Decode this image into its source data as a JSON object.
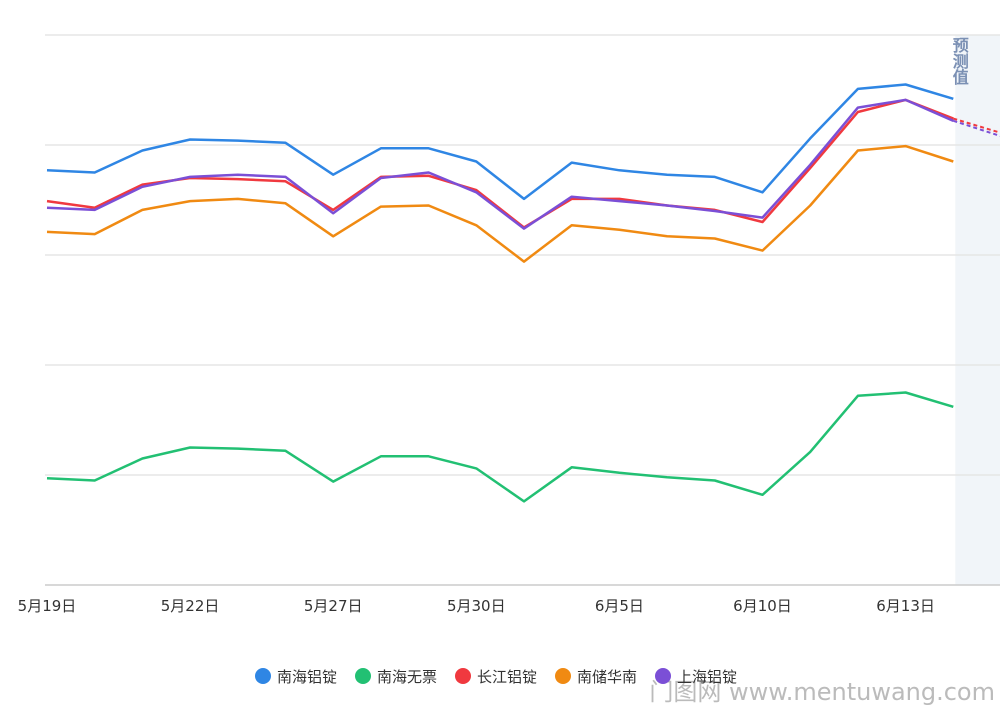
{
  "chart_data": {
    "type": "line",
    "categories": [
      "5月19日",
      null,
      null,
      "5月22日",
      null,
      null,
      "5月27日",
      null,
      null,
      "5月30日",
      null,
      null,
      "6月5日",
      null,
      null,
      "6月10日",
      null,
      null,
      "6月13日",
      null,
      null
    ],
    "forecast_start_index": 19,
    "forecast_label": "预测值",
    "ylim": [
      0,
      5
    ],
    "yticks": [
      0,
      1,
      2,
      3,
      4,
      5
    ],
    "grid": true,
    "series": [
      {
        "name": "南海铝锭",
        "color": "#2f86e4",
        "values": [
          3.77,
          3.75,
          3.95,
          4.05,
          4.04,
          4.02,
          3.73,
          3.97,
          3.97,
          3.85,
          3.51,
          3.84,
          3.77,
          3.73,
          3.71,
          3.57,
          4.06,
          4.51,
          4.55,
          4.42,
          null
        ]
      },
      {
        "name": "南海无票",
        "color": "#22c073",
        "values": [
          0.97,
          0.95,
          1.15,
          1.25,
          1.24,
          1.22,
          0.94,
          1.17,
          1.17,
          1.06,
          0.76,
          1.07,
          1.02,
          0.98,
          0.95,
          0.82,
          1.21,
          1.72,
          1.75,
          1.62,
          null
        ]
      },
      {
        "name": "长江铝锭",
        "color": "#f0393f",
        "values": [
          3.49,
          3.43,
          3.64,
          3.7,
          3.69,
          3.67,
          3.41,
          3.71,
          3.72,
          3.59,
          3.25,
          3.51,
          3.51,
          3.45,
          3.41,
          3.3,
          3.79,
          4.3,
          4.41,
          4.24,
          4.11
        ]
      },
      {
        "name": "南储华南",
        "color": "#f08a12",
        "values": [
          3.21,
          3.19,
          3.41,
          3.49,
          3.51,
          3.47,
          3.17,
          3.44,
          3.45,
          3.27,
          2.94,
          3.27,
          3.23,
          3.17,
          3.15,
          3.04,
          3.45,
          3.95,
          3.99,
          3.85,
          null
        ]
      },
      {
        "name": "上海铝锭",
        "color": "#7b4fd6",
        "values": [
          3.43,
          3.41,
          3.62,
          3.71,
          3.73,
          3.71,
          3.38,
          3.7,
          3.75,
          3.57,
          3.24,
          3.53,
          3.49,
          3.45,
          3.4,
          3.34,
          3.82,
          4.34,
          4.41,
          4.22,
          4.08
        ]
      }
    ],
    "watermark": "门图网 www.mentuwang.com"
  }
}
